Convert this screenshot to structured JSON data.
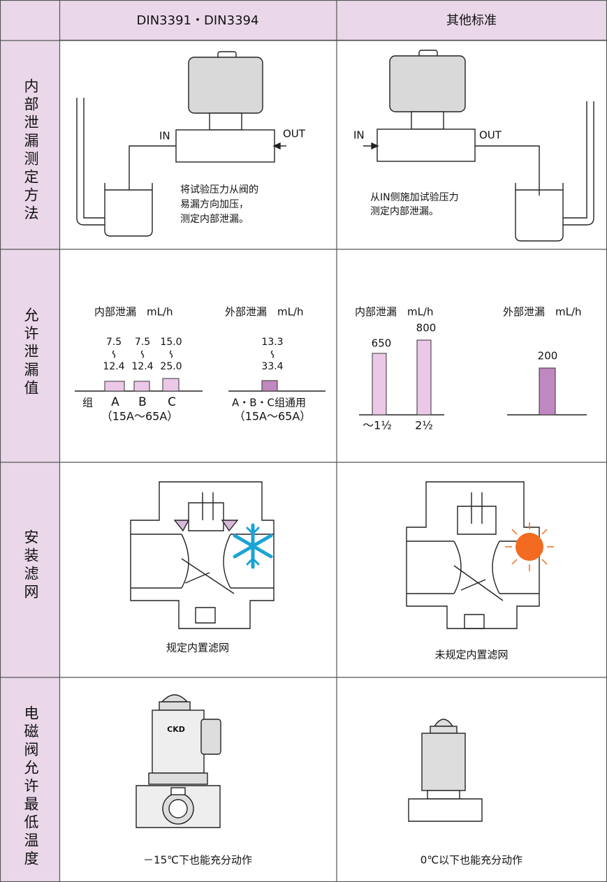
{
  "header": {
    "col1": "DIN3391・DIN3394",
    "col2": "其他标准"
  },
  "rows": [
    {
      "label": "内部泄漏测定方法",
      "din": {
        "in": "IN",
        "out": "OUT",
        "note": [
          "将试验压力从阀的",
          "易漏方向加压，",
          "测定内部泄漏。"
        ]
      },
      "other": {
        "in": "IN",
        "out": "OUT",
        "note": [
          "从IN侧施加试验压力",
          "测定内部泄漏。"
        ]
      }
    },
    {
      "label": "允许泄漏值",
      "din": {
        "internal_title": "内部泄漏　mL/h",
        "external_title": "外部泄漏　mL/h",
        "groups": [
          {
            "name": "A",
            "min": "7.5",
            "max": "12.4"
          },
          {
            "name": "B",
            "min": "7.5",
            "max": "12.4"
          },
          {
            "name": "C",
            "min": "15.0",
            "max": "25.0"
          }
        ],
        "group_label": "组",
        "range": "（15A～65A）",
        "external": {
          "min": "13.3",
          "max": "33.4",
          "name": "A・B・C组通用",
          "range": "（15A～65A）"
        }
      },
      "other": {
        "internal_title": "内部泄漏　mL/h",
        "external_title": "外部泄漏　mL/h",
        "internal": [
          {
            "size": "～1½",
            "value": "650"
          },
          {
            "size": "2½",
            "value": "800"
          }
        ],
        "external": "200"
      }
    },
    {
      "label": "安装滤网",
      "din": {
        "caption": "规定内置滤网"
      },
      "other": {
        "caption": "未规定内置滤网"
      }
    },
    {
      "label": "电磁阀允许最低温度",
      "din": {
        "caption": "－15℃下也能充分动作",
        "logo": "CKD"
      },
      "other": {
        "caption": "0℃以下也能充分动作"
      }
    }
  ]
}
